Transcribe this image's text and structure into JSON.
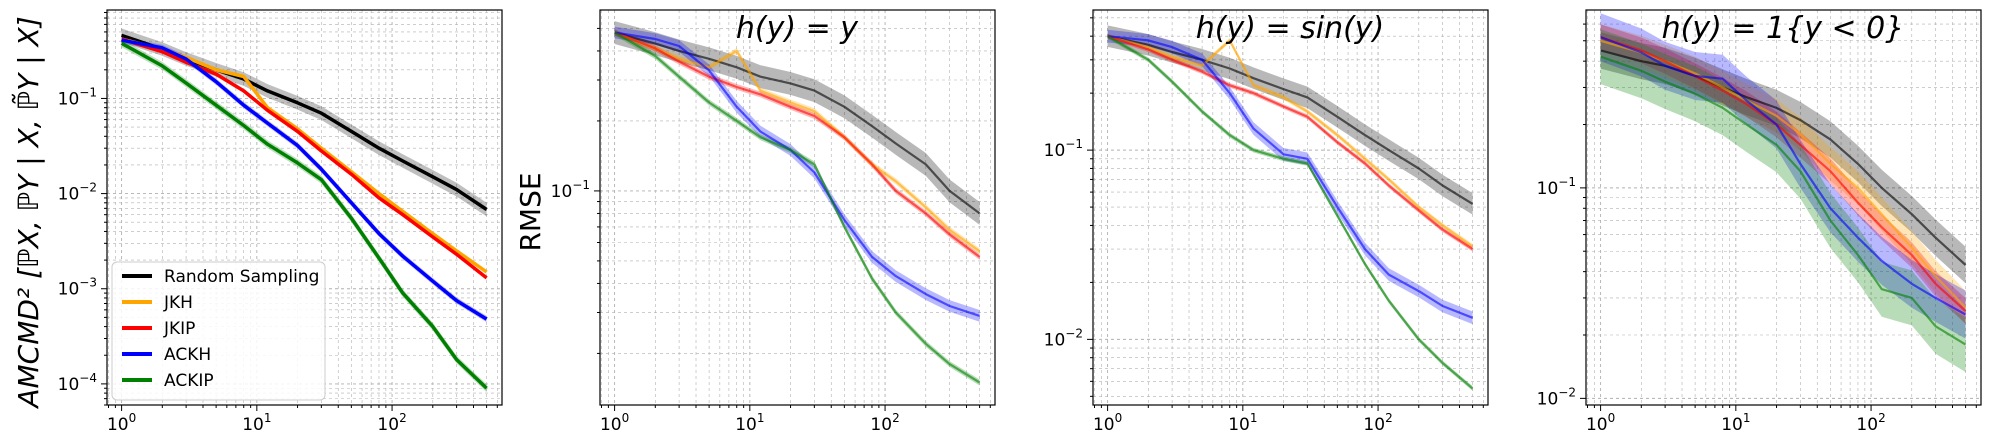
{
  "figure": {
    "ylabel_left": "AMCMD² [ℙX, ℙY | X, ℙ̃Y | X]",
    "ylabel_rmse": "RMSE"
  },
  "legend": {
    "items": [
      {
        "name": "Random Sampling",
        "color": "#000000"
      },
      {
        "name": "JKH",
        "color": "#ffa500"
      },
      {
        "name": "JKIP",
        "color": "#ff0000"
      },
      {
        "name": "ACKH",
        "color": "#0000ff"
      },
      {
        "name": "ACKIP",
        "color": "#008000"
      }
    ]
  },
  "chart_data": [
    {
      "type": "line",
      "title": "",
      "xlabel": "",
      "ylabel": "AMCMD² [ℙX, ℙY | X, ℙ̃Y | X]",
      "xscale": "log",
      "yscale": "log",
      "xlim": [
        0.78,
        650
      ],
      "ylim": [
        6e-05,
        0.85
      ],
      "xticks": [
        {
          "v": 1,
          "b": "10",
          "e": "0"
        },
        {
          "v": 10,
          "b": "10",
          "e": "1"
        },
        {
          "v": 100,
          "b": "10",
          "e": "2"
        }
      ],
      "yticks": [
        {
          "v": 0.0001,
          "b": "10",
          "e": "−4"
        },
        {
          "v": 0.001,
          "b": "10",
          "e": "−3"
        },
        {
          "v": 0.01,
          "b": "10",
          "e": "−2"
        },
        {
          "v": 0.1,
          "b": "10",
          "e": "−1"
        }
      ],
      "legend": true,
      "x": [
        1,
        2,
        3,
        5,
        8,
        12,
        20,
        30,
        50,
        80,
        120,
        200,
        300,
        500
      ],
      "series": [
        {
          "name": "Random Sampling",
          "color": "#000000",
          "band": 0.18,
          "values": [
            0.46,
            0.33,
            0.26,
            0.2,
            0.16,
            0.12,
            0.09,
            0.07,
            0.045,
            0.03,
            0.022,
            0.015,
            0.011,
            0.0068
          ]
        },
        {
          "name": "JKH",
          "color": "#ffa500",
          "band": 0.05,
          "values": [
            0.42,
            0.33,
            0.27,
            0.2,
            0.17,
            0.08,
            0.048,
            0.03,
            0.017,
            0.01,
            0.0065,
            0.0038,
            0.0025,
            0.0015
          ]
        },
        {
          "name": "JKIP",
          "color": "#ff0000",
          "band": 0.05,
          "values": [
            0.42,
            0.31,
            0.24,
            0.18,
            0.12,
            0.075,
            0.045,
            0.028,
            0.016,
            0.009,
            0.006,
            0.0035,
            0.0023,
            0.0013
          ]
        },
        {
          "name": "ACKH",
          "color": "#0000ff",
          "band": 0.08,
          "values": [
            0.41,
            0.34,
            0.26,
            0.15,
            0.085,
            0.055,
            0.032,
            0.018,
            0.008,
            0.0038,
            0.0022,
            0.0012,
            0.00075,
            0.00048
          ]
        },
        {
          "name": "ACKIP",
          "color": "#008000",
          "band": 0.1,
          "values": [
            0.38,
            0.22,
            0.145,
            0.085,
            0.052,
            0.033,
            0.021,
            0.014,
            0.0055,
            0.0021,
            0.0009,
            0.0004,
            0.00018,
            9e-05
          ]
        }
      ]
    },
    {
      "type": "line",
      "title": "h(y) = y",
      "xlabel": "",
      "ylabel": "RMSE",
      "xscale": "log",
      "yscale": "log",
      "xlim": [
        0.78,
        650
      ],
      "ylim": [
        0.012,
        0.6
      ],
      "xticks": [
        {
          "v": 1,
          "b": "10",
          "e": "0"
        },
        {
          "v": 10,
          "b": "10",
          "e": "1"
        },
        {
          "v": 100,
          "b": "10",
          "e": "2"
        }
      ],
      "yticks": [
        {
          "v": 0.1,
          "b": "10",
          "e": "−1"
        }
      ],
      "legend": false,
      "x": [
        1,
        2,
        3,
        5,
        8,
        12,
        20,
        30,
        50,
        80,
        120,
        200,
        300,
        500
      ],
      "series": [
        {
          "name": "Random Sampling",
          "color": "#000000",
          "band": 0.12,
          "values": [
            0.48,
            0.43,
            0.4,
            0.37,
            0.34,
            0.31,
            0.29,
            0.27,
            0.23,
            0.19,
            0.16,
            0.13,
            0.1,
            0.08
          ]
        },
        {
          "name": "JKH",
          "color": "#ffa500",
          "band": 0.03,
          "values": [
            0.48,
            0.41,
            0.37,
            0.34,
            0.4,
            0.27,
            0.24,
            0.22,
            0.17,
            0.13,
            0.11,
            0.085,
            0.068,
            0.055
          ]
        },
        {
          "name": "JKIP",
          "color": "#ff0000",
          "band": 0.03,
          "values": [
            0.48,
            0.41,
            0.36,
            0.31,
            0.28,
            0.26,
            0.23,
            0.21,
            0.17,
            0.13,
            0.1,
            0.08,
            0.065,
            0.052
          ]
        },
        {
          "name": "ACKH",
          "color": "#0000ff",
          "band": 0.06,
          "values": [
            0.48,
            0.45,
            0.42,
            0.33,
            0.23,
            0.18,
            0.15,
            0.12,
            0.075,
            0.052,
            0.043,
            0.036,
            0.032,
            0.029
          ]
        },
        {
          "name": "ACKIP",
          "color": "#008000",
          "band": 0.03,
          "values": [
            0.48,
            0.38,
            0.31,
            0.24,
            0.2,
            0.17,
            0.15,
            0.13,
            0.07,
            0.042,
            0.03,
            0.022,
            0.018,
            0.015
          ]
        }
      ]
    },
    {
      "type": "line",
      "title": "h(y) = sin(y)",
      "xlabel": "",
      "ylabel": "",
      "xscale": "log",
      "yscale": "log",
      "xlim": [
        0.78,
        650
      ],
      "ylim": [
        0.0045,
        0.55
      ],
      "xticks": [
        {
          "v": 1,
          "b": "10",
          "e": "0"
        },
        {
          "v": 10,
          "b": "10",
          "e": "1"
        },
        {
          "v": 100,
          "b": "10",
          "e": "2"
        }
      ],
      "yticks": [
        {
          "v": 0.01,
          "b": "10",
          "e": "−2"
        },
        {
          "v": 0.1,
          "b": "10",
          "e": "−1"
        }
      ],
      "legend": false,
      "x": [
        1,
        2,
        3,
        5,
        8,
        12,
        20,
        30,
        50,
        80,
        120,
        200,
        300,
        500
      ],
      "series": [
        {
          "name": "Random Sampling",
          "color": "#000000",
          "band": 0.14,
          "values": [
            0.4,
            0.36,
            0.33,
            0.3,
            0.27,
            0.24,
            0.21,
            0.19,
            0.15,
            0.12,
            0.1,
            0.08,
            0.065,
            0.052
          ]
        },
        {
          "name": "JKH",
          "color": "#ffa500",
          "band": 0.03,
          "values": [
            0.4,
            0.35,
            0.31,
            0.28,
            0.38,
            0.22,
            0.19,
            0.16,
            0.12,
            0.09,
            0.07,
            0.05,
            0.04,
            0.031
          ]
        },
        {
          "name": "JKIP",
          "color": "#ff0000",
          "band": 0.03,
          "values": [
            0.4,
            0.34,
            0.3,
            0.26,
            0.22,
            0.2,
            0.17,
            0.15,
            0.11,
            0.085,
            0.065,
            0.048,
            0.038,
            0.03
          ]
        },
        {
          "name": "ACKH",
          "color": "#0000ff",
          "band": 0.08,
          "values": [
            0.4,
            0.38,
            0.35,
            0.3,
            0.2,
            0.13,
            0.095,
            0.09,
            0.05,
            0.03,
            0.022,
            0.018,
            0.015,
            0.013
          ]
        },
        {
          "name": "ACKIP",
          "color": "#008000",
          "band": 0.03,
          "values": [
            0.4,
            0.3,
            0.23,
            0.16,
            0.12,
            0.1,
            0.09,
            0.085,
            0.045,
            0.025,
            0.016,
            0.01,
            0.0075,
            0.0055
          ]
        }
      ]
    },
    {
      "type": "line",
      "title": "h(y) = 1{y < 0}",
      "xlabel": "",
      "ylabel": "",
      "xscale": "log",
      "yscale": "log",
      "xlim": [
        0.78,
        650
      ],
      "ylim": [
        0.0093,
        0.7
      ],
      "xticks": [
        {
          "v": 1,
          "b": "10",
          "e": "0"
        },
        {
          "v": 10,
          "b": "10",
          "e": "1"
        },
        {
          "v": 100,
          "b": "10",
          "e": "2"
        }
      ],
      "yticks": [
        {
          "v": 0.01,
          "b": "10",
          "e": "−2"
        },
        {
          "v": 0.1,
          "b": "10",
          "e": "−1"
        }
      ],
      "legend": false,
      "x": [
        1,
        2,
        3,
        5,
        8,
        12,
        20,
        30,
        50,
        80,
        120,
        200,
        300,
        500
      ],
      "series": [
        {
          "name": "Random Sampling",
          "color": "#000000",
          "band": 0.22,
          "values": [
            0.45,
            0.4,
            0.38,
            0.34,
            0.3,
            0.27,
            0.24,
            0.21,
            0.17,
            0.13,
            0.1,
            0.075,
            0.058,
            0.043
          ]
        },
        {
          "name": "JKH",
          "color": "#ffa500",
          "band": 0.2,
          "values": [
            0.5,
            0.44,
            0.4,
            0.35,
            0.3,
            0.26,
            0.22,
            0.18,
            0.13,
            0.1,
            0.075,
            0.052,
            0.038,
            0.027
          ]
        },
        {
          "name": "JKIP",
          "color": "#ff0000",
          "band": 0.15,
          "values": [
            0.52,
            0.45,
            0.4,
            0.34,
            0.29,
            0.25,
            0.2,
            0.16,
            0.12,
            0.085,
            0.065,
            0.048,
            0.035,
            0.026
          ]
        },
        {
          "name": "ACKH",
          "color": "#0000ff",
          "band": 0.3,
          "values": [
            0.52,
            0.44,
            0.38,
            0.34,
            0.33,
            0.26,
            0.2,
            0.13,
            0.08,
            0.058,
            0.045,
            0.035,
            0.03,
            0.025
          ]
        },
        {
          "name": "ACKIP",
          "color": "#008000",
          "band": 0.35,
          "values": [
            0.42,
            0.36,
            0.32,
            0.28,
            0.24,
            0.2,
            0.16,
            0.12,
            0.07,
            0.048,
            0.033,
            0.03,
            0.022,
            0.018
          ]
        }
      ]
    }
  ]
}
